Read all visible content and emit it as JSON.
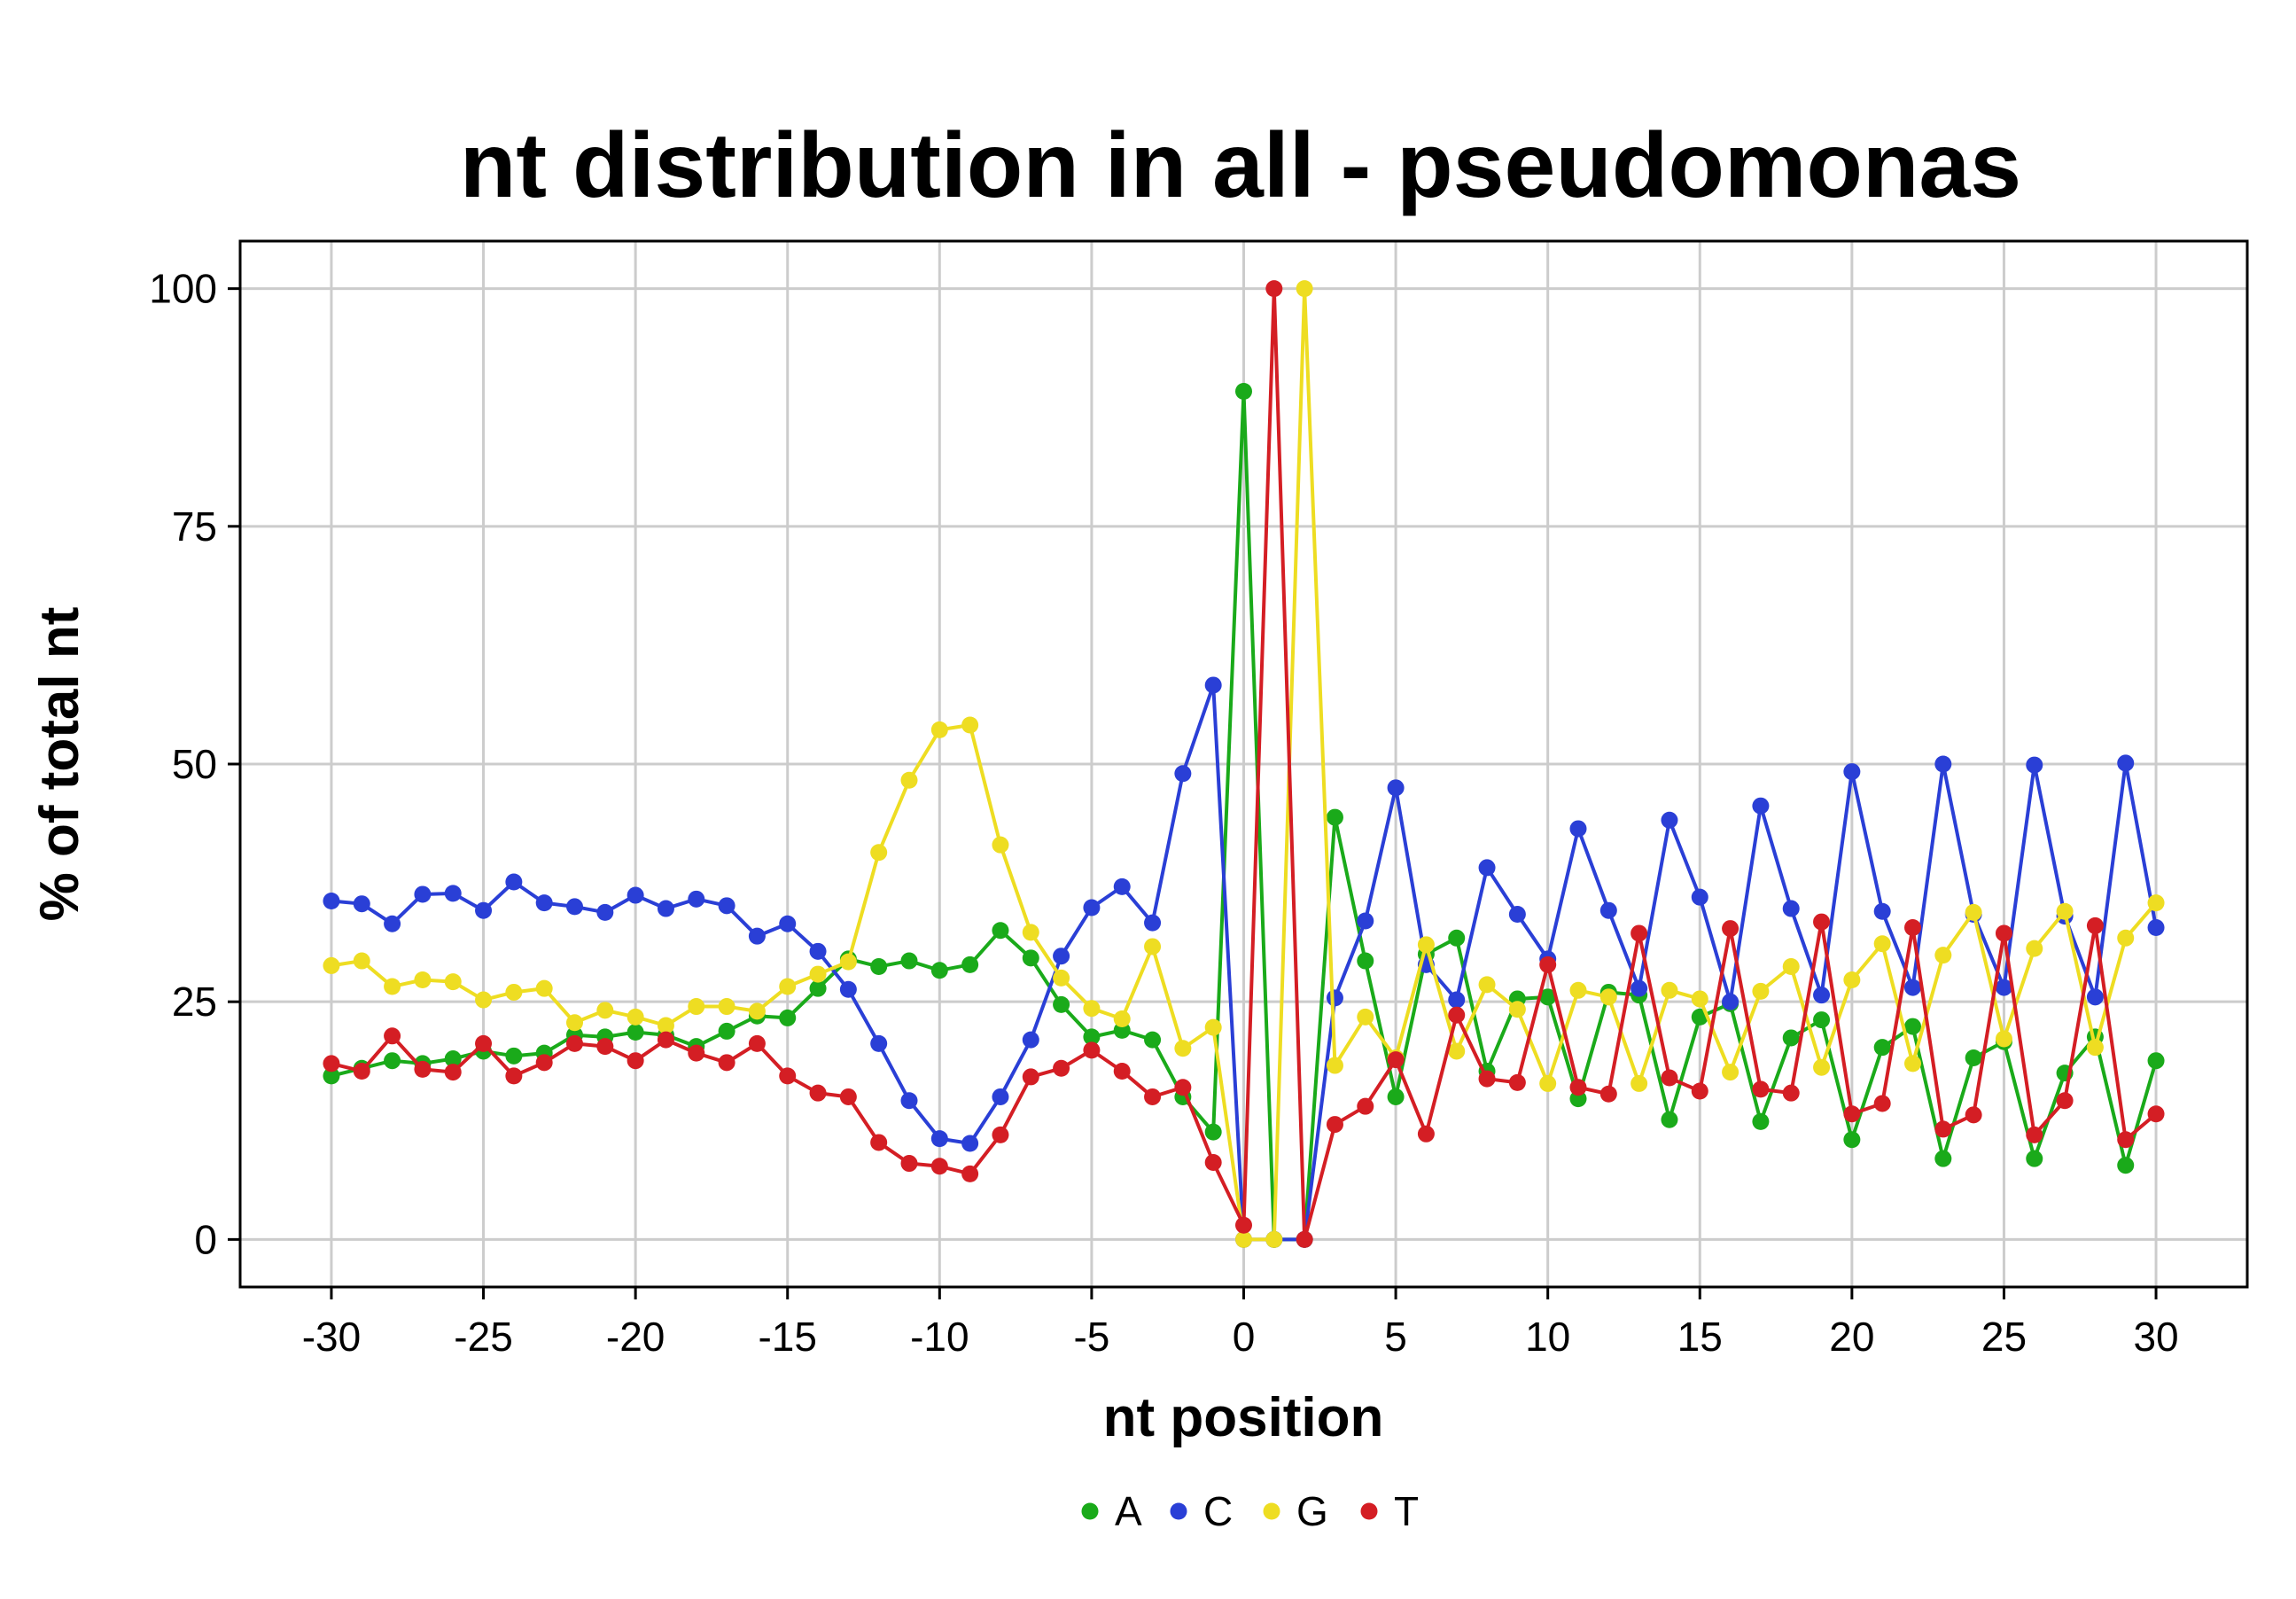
{
  "chart_data": {
    "type": "line",
    "title": "nt distribution in all - pseudomonas",
    "xlabel": "nt position",
    "ylabel": "% of total nt",
    "xlim": [
      -33,
      33
    ],
    "ylim": [
      -5,
      105
    ],
    "xticks": [
      -30,
      -25,
      -20,
      -15,
      -10,
      -5,
      0,
      5,
      10,
      15,
      20,
      25,
      30
    ],
    "yticks": [
      0,
      25,
      50,
      75,
      100
    ],
    "grid": true,
    "legend": "bottom",
    "x": [
      -30,
      -29,
      -28,
      -27,
      -26,
      -25,
      -24,
      -23,
      -22,
      -21,
      -20,
      -19,
      -18,
      -17,
      -16,
      -15,
      -14,
      -13,
      -12,
      -11,
      -10,
      -9,
      -8,
      -7,
      -6,
      -5,
      -4,
      -3,
      -2,
      -1,
      0,
      1,
      2,
      3,
      4,
      5,
      6,
      7,
      8,
      9,
      10,
      11,
      12,
      13,
      14,
      15,
      16,
      17,
      18,
      19,
      20,
      21,
      22,
      23,
      24,
      25,
      26,
      27,
      28,
      29,
      30
    ],
    "series": [
      {
        "name": "A",
        "color": "#1aaa1a",
        "values": [
          17.2,
          18,
          18.8,
          18.5,
          19,
          19.8,
          19.3,
          19.6,
          21.5,
          21.3,
          21.8,
          21.5,
          20.3,
          21.9,
          23.5,
          23.3,
          26.4,
          29.5,
          28.7,
          29.3,
          28.3,
          28.9,
          32.5,
          29.6,
          24.7,
          21.3,
          22,
          21,
          15,
          11.3,
          89.2,
          0,
          0,
          44.4,
          29.3,
          15,
          30,
          31.7,
          17.7,
          25.3,
          25.5,
          14.8,
          26,
          25.7,
          12.6,
          23.4,
          24.8,
          12.4,
          21.2,
          23.1,
          10.5,
          20.2,
          22.4,
          8.5,
          19.1,
          20.8,
          8.5,
          17.5,
          21.3,
          7.8,
          18.8
        ]
      },
      {
        "name": "C",
        "color": "#2a3fd6",
        "values": [
          35.6,
          35.3,
          33.2,
          36.3,
          36.4,
          34.6,
          37.6,
          35.4,
          35,
          34.4,
          36.2,
          34.8,
          35.8,
          35.1,
          31.9,
          33.2,
          30.3,
          26.3,
          20.6,
          14.6,
          10.6,
          10.1,
          15,
          21,
          29.8,
          34.9,
          37.1,
          33.3,
          49,
          58.3,
          0,
          0,
          0,
          25.4,
          33.5,
          47.5,
          28.9,
          25.2,
          39.1,
          34.2,
          29.5,
          43.2,
          34.6,
          26.4,
          44.1,
          36,
          25,
          45.6,
          34.8,
          25.7,
          49.2,
          34.5,
          26.5,
          50,
          34.2,
          26.5,
          49.9,
          34,
          25.5,
          50.1,
          32.8
        ]
      },
      {
        "name": "G",
        "color": "#eedd22",
        "values": [
          28.8,
          29.3,
          26.6,
          27.3,
          27.1,
          25.2,
          26,
          26.4,
          22.8,
          24.1,
          23.4,
          22.5,
          24.5,
          24.5,
          24,
          26.6,
          27.9,
          29.2,
          40.7,
          48.3,
          53.6,
          54.1,
          41.5,
          32.3,
          27.5,
          24.3,
          23.2,
          30.8,
          20.1,
          22.3,
          0,
          0,
          100,
          18.3,
          23.4,
          19.1,
          31,
          19.8,
          26.8,
          24.2,
          16.4,
          26.2,
          25.5,
          16.4,
          26.2,
          25.3,
          17.6,
          26.1,
          28.7,
          18.1,
          27.3,
          31.1,
          18.5,
          29.9,
          34.4,
          21.1,
          30.6,
          34.5,
          20.2,
          31.7,
          35.4
        ]
      },
      {
        "name": "T",
        "color": "#d41e24",
        "values": [
          18.5,
          17.7,
          21.4,
          17.9,
          17.6,
          20.6,
          17.2,
          18.6,
          20.6,
          20.3,
          18.8,
          21,
          19.6,
          18.6,
          20.6,
          17.2,
          15.4,
          15,
          10.2,
          8,
          7.7,
          6.9,
          11,
          17.1,
          18,
          19.9,
          17.7,
          15,
          16,
          8.1,
          1.5,
          100,
          0,
          12.1,
          14,
          18.9,
          11.1,
          23.6,
          16.9,
          16.5,
          28.9,
          16,
          15.3,
          32.2,
          17,
          15.6,
          32.7,
          15.8,
          15.4,
          33.4,
          13.2,
          14.3,
          32.8,
          11.6,
          13.1,
          32.2,
          11,
          14.6,
          33,
          10.5,
          13.2
        ]
      }
    ]
  }
}
